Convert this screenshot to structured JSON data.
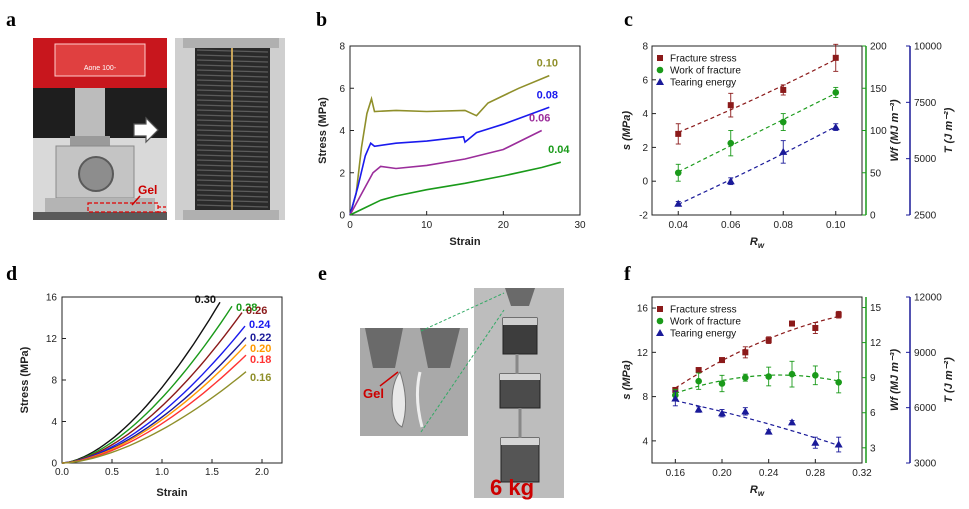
{
  "panels": {
    "a": "a",
    "b": "b",
    "c": "c",
    "d": "d",
    "e": "e",
    "f": "f"
  },
  "photo_a": {
    "gel_label": "Gel",
    "machine_text": "Aone 100-"
  },
  "photo_e": {
    "gel_label": "Gel",
    "weight_label": "6 kg"
  },
  "colors": {
    "red": "#8b1a1a",
    "green": "#1a9a1a",
    "blue": "#1a1a99",
    "olive": "#8f8f2a",
    "violet": "#9b2d9b",
    "brightblue": "#1a1aee",
    "orange": "#ff9900",
    "ltred": "#ff3333"
  },
  "chart_data": [
    {
      "id": "b",
      "type": "line",
      "xlabel": "Strain",
      "ylabel": "Stress (MPa)",
      "xlim": [
        0,
        30
      ],
      "ylim": [
        0,
        8
      ],
      "xticks": [
        "0",
        "10",
        "20",
        "30"
      ],
      "yticks": [
        "0",
        "2",
        "4",
        "6",
        "8"
      ],
      "series": [
        {
          "name": "0.10",
          "color": "#8f8f2a",
          "points": [
            [
              0,
              0
            ],
            [
              0.8,
              1.0
            ],
            [
              1.5,
              3.2
            ],
            [
              2.2,
              4.8
            ],
            [
              2.8,
              5.5
            ],
            [
              3.2,
              4.9
            ],
            [
              6,
              4.95
            ],
            [
              10,
              4.9
            ],
            [
              15,
              4.95
            ],
            [
              16.5,
              4.7
            ],
            [
              18,
              5.3
            ],
            [
              22,
              6.0
            ],
            [
              26,
              6.6
            ]
          ]
        },
        {
          "name": "0.08",
          "color": "#1a1aee",
          "points": [
            [
              0,
              0
            ],
            [
              1,
              1.3
            ],
            [
              2,
              2.8
            ],
            [
              2.7,
              3.4
            ],
            [
              3.2,
              3.25
            ],
            [
              6,
              3.4
            ],
            [
              10,
              3.5
            ],
            [
              14.8,
              3.7
            ],
            [
              15,
              3.45
            ],
            [
              16.5,
              3.9
            ],
            [
              20,
              4.3
            ],
            [
              23,
              4.7
            ],
            [
              26,
              5.1
            ]
          ]
        },
        {
          "name": "0.06",
          "color": "#9b2d9b",
          "points": [
            [
              0,
              0
            ],
            [
              1.5,
              1.0
            ],
            [
              3,
              2.0
            ],
            [
              4,
              2.3
            ],
            [
              6,
              2.2
            ],
            [
              10,
              2.35
            ],
            [
              15,
              2.65
            ],
            [
              20,
              3.1
            ],
            [
              25,
              4.0
            ]
          ]
        },
        {
          "name": "0.04",
          "color": "#1a9a1a",
          "points": [
            [
              0,
              0
            ],
            [
              2,
              0.35
            ],
            [
              4,
              0.7
            ],
            [
              6,
              0.9
            ],
            [
              10,
              1.2
            ],
            [
              15,
              1.5
            ],
            [
              20,
              1.85
            ],
            [
              25,
              2.25
            ],
            [
              27.5,
              2.5
            ]
          ]
        }
      ]
    },
    {
      "id": "c",
      "type": "scatter",
      "xlabel": "R",
      "xlabel_sub": "w",
      "ylabel_left": "s (MPa)",
      "ylabel_mid": "Wf (MJ m⁻³)",
      "ylabel_right": "T (J m⁻²)",
      "xlim": [
        0.03,
        0.11
      ],
      "ylim_left": [
        -2,
        8
      ],
      "ylim_mid": [
        0,
        200
      ],
      "ylim_right": [
        2500,
        10000
      ],
      "xticks": [
        "0.04",
        "0.06",
        "0.08",
        "0.10"
      ],
      "yticks_left": [
        "-2",
        "0",
        "2",
        "4",
        "6",
        "8"
      ],
      "yticks_mid": [
        "0",
        "50",
        "100",
        "150",
        "200"
      ],
      "yticks_right": [
        "2500",
        "5000",
        "7500",
        "10000"
      ],
      "legend": [
        "Fracture stress",
        "Work of fracture",
        "Tearing energy"
      ],
      "series": [
        {
          "name": "Fracture stress",
          "axis": "left",
          "color": "#8b1a1a",
          "marker": "square",
          "x": [
            0.04,
            0.06,
            0.08,
            0.1
          ],
          "y": [
            2.8,
            4.5,
            5.4,
            7.3
          ],
          "err": [
            0.6,
            0.7,
            0.3,
            0.8
          ]
        },
        {
          "name": "Work of fracture",
          "axis": "mid",
          "color": "#1a9a1a",
          "marker": "circle",
          "x": [
            0.04,
            0.06,
            0.08,
            0.1
          ],
          "y": [
            50,
            85,
            110,
            145
          ],
          "err": [
            10,
            15,
            10,
            6
          ]
        },
        {
          "name": "Tearing energy",
          "axis": "right",
          "color": "#1a1a99",
          "marker": "triangle",
          "x": [
            0.04,
            0.06,
            0.08,
            0.1
          ],
          "y": [
            3000,
            4000,
            5300,
            6400
          ],
          "err": [
            100,
            150,
            500,
            150
          ]
        }
      ]
    },
    {
      "id": "d",
      "type": "line",
      "xlabel": "Strain",
      "ylabel": "Stress (MPa)",
      "xlim": [
        0,
        2.2
      ],
      "ylim": [
        0,
        16
      ],
      "xticks": [
        "0.0",
        "0.5",
        "1.0",
        "1.5",
        "2.0"
      ],
      "yticks": [
        "0",
        "4",
        "8",
        "12",
        "16"
      ],
      "series": [
        {
          "name": "0.30",
          "color": "#111111",
          "end": [
            1.58,
            15.5
          ]
        },
        {
          "name": "0.28",
          "color": "#1a9a1a",
          "end": [
            1.7,
            15.1
          ]
        },
        {
          "name": "0.26",
          "color": "#8b1a1a",
          "end": [
            1.8,
            14.5
          ]
        },
        {
          "name": "0.24",
          "color": "#1a1aee",
          "end": [
            1.83,
            13.2
          ]
        },
        {
          "name": "0.22",
          "color": "#1a1a99",
          "end": [
            1.84,
            12.1
          ]
        },
        {
          "name": "0.20",
          "color": "#ff9900",
          "end": [
            1.84,
            11.4
          ]
        },
        {
          "name": "0.18",
          "color": "#ff3333",
          "end": [
            1.84,
            10.4
          ]
        },
        {
          "name": "0.16",
          "color": "#8f8f2a",
          "end": [
            1.84,
            8.8
          ]
        }
      ]
    },
    {
      "id": "f",
      "type": "scatter",
      "xlabel": "R",
      "xlabel_sub": "w",
      "ylabel_left": "s (MPa)",
      "ylabel_mid": "Wf (MJ m⁻³)",
      "ylabel_right": "T (J m⁻²)",
      "xlim": [
        0.14,
        0.32
      ],
      "ylim_left": [
        2,
        17
      ],
      "ylim_mid": [
        1.7,
        15.9
      ],
      "ylim_right": [
        3000,
        12000
      ],
      "xticks": [
        "0.16",
        "0.20",
        "0.24",
        "0.28",
        "0.32"
      ],
      "yticks_left": [
        "4",
        "8",
        "12",
        "16"
      ],
      "yticks_mid": [
        "3",
        "6",
        "9",
        "12",
        "15"
      ],
      "yticks_right": [
        "3000",
        "6000",
        "9000",
        "12000"
      ],
      "legend": [
        "Fracture stress",
        "Work of fracture",
        "Tearing energy"
      ],
      "series": [
        {
          "name": "Fracture stress",
          "axis": "left",
          "color": "#8b1a1a",
          "marker": "square",
          "x": [
            0.16,
            0.18,
            0.2,
            0.22,
            0.24,
            0.26,
            0.28,
            0.3
          ],
          "y": [
            8.6,
            10.4,
            11.3,
            12.0,
            13.1,
            14.6,
            14.2,
            15.4
          ],
          "err": [
            0.2,
            0.2,
            0.2,
            0.5,
            0.3,
            0.2,
            0.5,
            0.3
          ]
        },
        {
          "name": "Work of fracture",
          "axis": "mid",
          "color": "#1a9a1a",
          "marker": "circle",
          "x": [
            0.16,
            0.18,
            0.2,
            0.22,
            0.24,
            0.26,
            0.28,
            0.3
          ],
          "y": [
            7.5,
            8.7,
            8.5,
            9.0,
            9.1,
            9.3,
            9.2,
            8.6
          ],
          "err": [
            0.5,
            0.7,
            0.7,
            0.3,
            0.8,
            1.1,
            0.8,
            0.9
          ]
        },
        {
          "name": "Tearing energy",
          "axis": "right",
          "color": "#1a1a99",
          "marker": "triangle",
          "x": [
            0.16,
            0.18,
            0.2,
            0.22,
            0.24,
            0.26,
            0.28,
            0.3
          ],
          "y": [
            6500,
            5900,
            5700,
            5800,
            4700,
            5200,
            4100,
            4000
          ],
          "err": [
            400,
            150,
            200,
            200,
            100,
            100,
            300,
            400
          ]
        }
      ]
    }
  ]
}
